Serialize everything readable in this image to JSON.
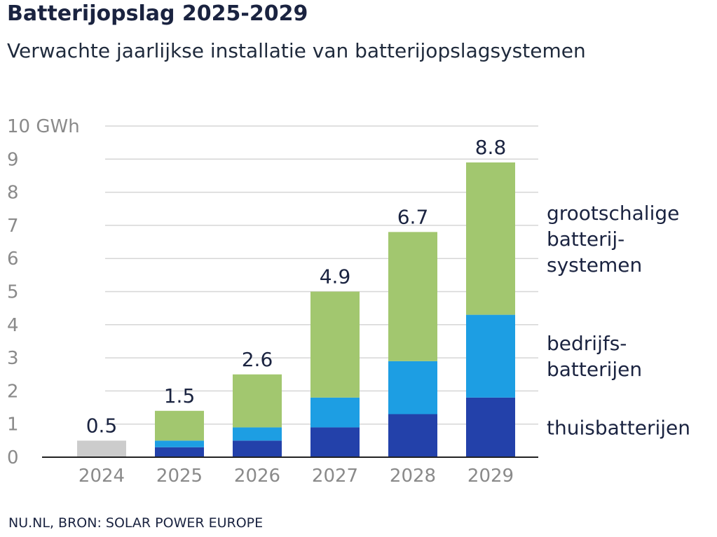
{
  "header": {
    "title": "Batterijopslag 2025-2029",
    "subtitle": "Verwachte jaarlijkse installatie van batterijopslagsystemen"
  },
  "footer": {
    "source": "NU.NL, BRON: SOLAR POWER EUROPE"
  },
  "chart_data": {
    "type": "bar",
    "stacked": true,
    "title": "Batterijopslag 2025-2029",
    "subtitle": "Verwachte jaarlijkse installatie van batterijopslagsystemen",
    "xlabel": "",
    "ylabel": "",
    "y_unit": "GWh",
    "ylim": [
      0,
      10
    ],
    "y_ticks": [
      {
        "value": 0,
        "label": "0"
      },
      {
        "value": 1,
        "label": "1"
      },
      {
        "value": 2,
        "label": "2"
      },
      {
        "value": 3,
        "label": "3"
      },
      {
        "value": 4,
        "label": "4"
      },
      {
        "value": 5,
        "label": "5"
      },
      {
        "value": 6,
        "label": "6"
      },
      {
        "value": 7,
        "label": "7"
      },
      {
        "value": 8,
        "label": "8"
      },
      {
        "value": 9,
        "label": "9"
      },
      {
        "value": 10,
        "label": "10 GWh"
      }
    ],
    "grid": true,
    "legend_position": "right",
    "categories": [
      "2024",
      "2025",
      "2026",
      "2027",
      "2028",
      "2029"
    ],
    "totals": [
      "0.5",
      "1.5",
      "2.6",
      "4.9",
      "6.7",
      "8.8"
    ],
    "series": [
      {
        "name": "",
        "color": "#cccccc",
        "values": [
          0.5,
          0,
          0,
          0,
          0,
          0
        ]
      },
      {
        "name": "thuisbatterijen",
        "color": "#2341aa",
        "values": [
          0,
          0.3,
          0.5,
          0.9,
          1.3,
          1.8
        ]
      },
      {
        "name": "bedrijfs-batterijen",
        "color": "#1d9ee3",
        "values": [
          0,
          0.2,
          0.4,
          0.9,
          1.6,
          2.5
        ]
      },
      {
        "name": "grootschalige batterij-systemen",
        "color": "#a2c76f",
        "values": [
          0,
          0.9,
          1.6,
          3.2,
          3.9,
          4.6
        ]
      }
    ],
    "legend": [
      {
        "series": 3,
        "lines": [
          "grootschalige",
          "batterij-",
          "systemen"
        ]
      },
      {
        "series": 2,
        "lines": [
          "bedrijfs-",
          "batterijen"
        ]
      },
      {
        "series": 1,
        "lines": [
          "thuisbatterijen"
        ]
      }
    ]
  }
}
